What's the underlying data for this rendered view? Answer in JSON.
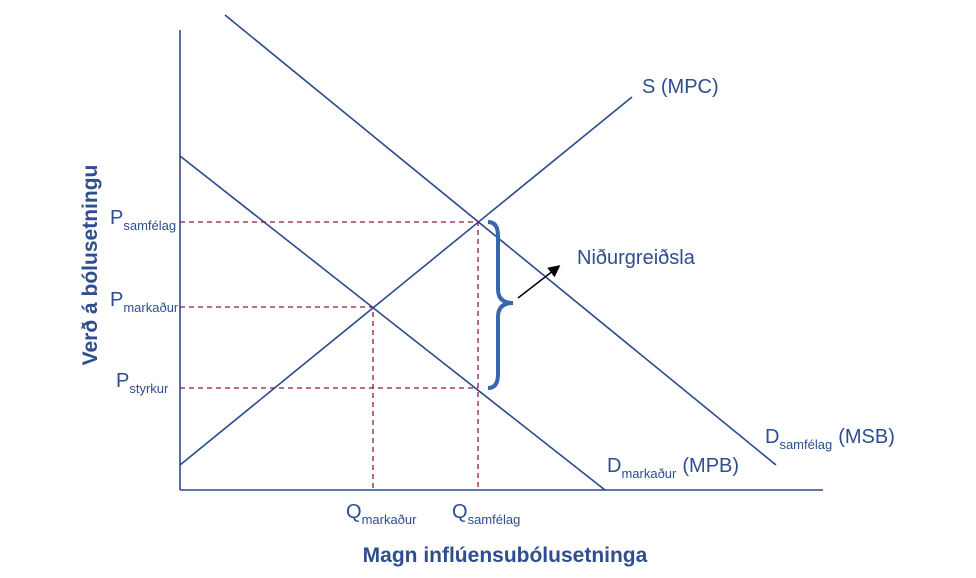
{
  "axes": {
    "y_title": "Verð á bólusetningu",
    "x_title": "Magn inflúensubólusetninga"
  },
  "price_labels": [
    {
      "main": "P",
      "sub": "samfélag"
    },
    {
      "main": "P",
      "sub": "markaður"
    },
    {
      "main": "P",
      "sub": "styrkur"
    }
  ],
  "quantity_labels": [
    {
      "main": "Q",
      "sub": "markaður"
    },
    {
      "main": "Q",
      "sub": "samfélag"
    }
  ],
  "curves": [
    {
      "main": "S (MPC)"
    },
    {
      "main": "D",
      "sub": "samfélag",
      "suffix": "(MSB)"
    },
    {
      "main": "D",
      "sub": "markaður",
      "suffix": "(MPB)"
    }
  ],
  "annotation": "Niðurgreiðsla"
}
